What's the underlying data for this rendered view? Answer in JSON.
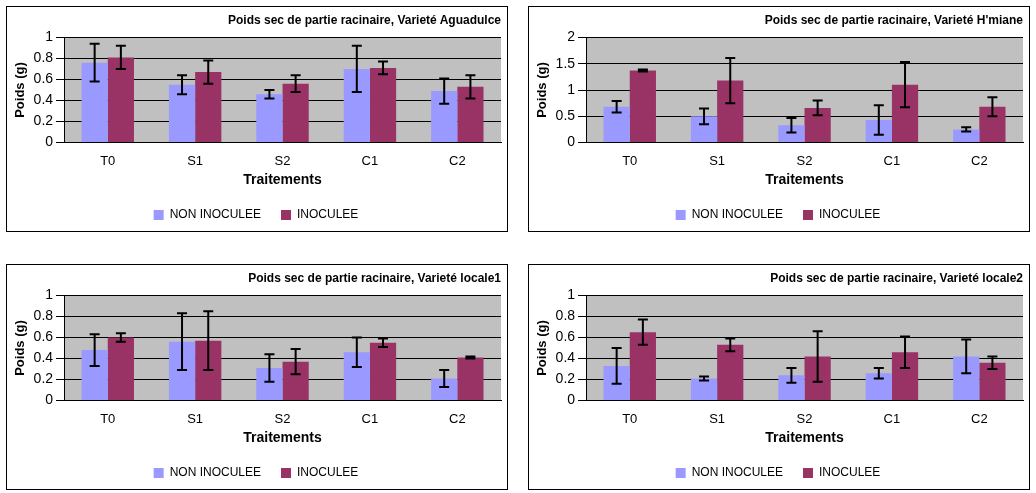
{
  "chart_data": [
    {
      "type": "bar",
      "title": "Poids sec de partie racinaire, Varieté Aguadulce",
      "xlabel": "Traitements",
      "ylabel": "Poids (g)",
      "categories": [
        "T0",
        "S1",
        "S2",
        "C1",
        "C2"
      ],
      "series": [
        {
          "name": "NON INOCULEE",
          "color": "#9999ff",
          "values": [
            0.76,
            0.55,
            0.46,
            0.7,
            0.49
          ],
          "errors": [
            0.18,
            0.09,
            0.04,
            0.22,
            0.12
          ]
        },
        {
          "name": "INOCULEE",
          "color": "#993366",
          "values": [
            0.81,
            0.67,
            0.56,
            0.71,
            0.53
          ],
          "errors": [
            0.11,
            0.11,
            0.08,
            0.06,
            0.11
          ]
        }
      ],
      "ylim": [
        0,
        1
      ],
      "yticks": [
        0,
        0.2,
        0.4,
        0.6,
        0.8,
        1
      ],
      "grid": "y",
      "legend": "bottom"
    },
    {
      "type": "bar",
      "title": "Poids sec de partie racinaire, Varieté H'miane",
      "xlabel": "Traitements",
      "ylabel": "Poids (g)",
      "categories": [
        "T0",
        "S1",
        "S2",
        "C1",
        "C2"
      ],
      "series": [
        {
          "name": "NON INOCULEE",
          "color": "#9999ff",
          "values": [
            0.68,
            0.5,
            0.33,
            0.43,
            0.25
          ],
          "errors": [
            0.11,
            0.15,
            0.14,
            0.28,
            0.04
          ]
        },
        {
          "name": "INOCULEE",
          "color": "#993366",
          "values": [
            1.37,
            1.18,
            0.66,
            1.1,
            0.68
          ],
          "errors": [
            0.02,
            0.43,
            0.14,
            0.43,
            0.18
          ]
        }
      ],
      "ylim": [
        0,
        2
      ],
      "yticks": [
        0,
        0.5,
        1,
        1.5,
        2
      ],
      "grid": "y",
      "legend": "bottom"
    },
    {
      "type": "bar",
      "title": "Poids sec de partie racinaire, Varieté locale1",
      "xlabel": "Traitements",
      "ylabel": "Poids (g)",
      "categories": [
        "T0",
        "S1",
        "S2",
        "C1",
        "C2"
      ],
      "series": [
        {
          "name": "NON INOCULEE",
          "color": "#9999ff",
          "values": [
            0.48,
            0.56,
            0.31,
            0.46,
            0.21
          ],
          "errors": [
            0.15,
            0.27,
            0.13,
            0.14,
            0.08
          ]
        },
        {
          "name": "INOCULEE",
          "color": "#993366",
          "values": [
            0.6,
            0.57,
            0.37,
            0.55,
            0.41
          ],
          "errors": [
            0.04,
            0.28,
            0.12,
            0.04,
            0.01
          ]
        }
      ],
      "ylim": [
        0,
        1
      ],
      "yticks": [
        0,
        0.2,
        0.4,
        0.6,
        0.8,
        1
      ],
      "grid": "y",
      "legend": "bottom"
    },
    {
      "type": "bar",
      "title": "Poids sec de partie racinaire, Varieté locale2",
      "xlabel": "Traitements",
      "ylabel": "Poids (g)",
      "categories": [
        "T0",
        "S1",
        "S2",
        "C1",
        "C2"
      ],
      "series": [
        {
          "name": "NON INOCULEE",
          "color": "#9999ff",
          "values": [
            0.33,
            0.21,
            0.24,
            0.26,
            0.42
          ],
          "errors": [
            0.17,
            0.02,
            0.07,
            0.05,
            0.16
          ]
        },
        {
          "name": "INOCULEE",
          "color": "#993366",
          "values": [
            0.65,
            0.53,
            0.42,
            0.46,
            0.36
          ],
          "errors": [
            0.12,
            0.06,
            0.24,
            0.15,
            0.06
          ]
        }
      ],
      "ylim": [
        0,
        1
      ],
      "yticks": [
        0,
        0.2,
        0.4,
        0.6,
        0.8,
        1
      ],
      "grid": "y",
      "legend": "bottom"
    }
  ]
}
